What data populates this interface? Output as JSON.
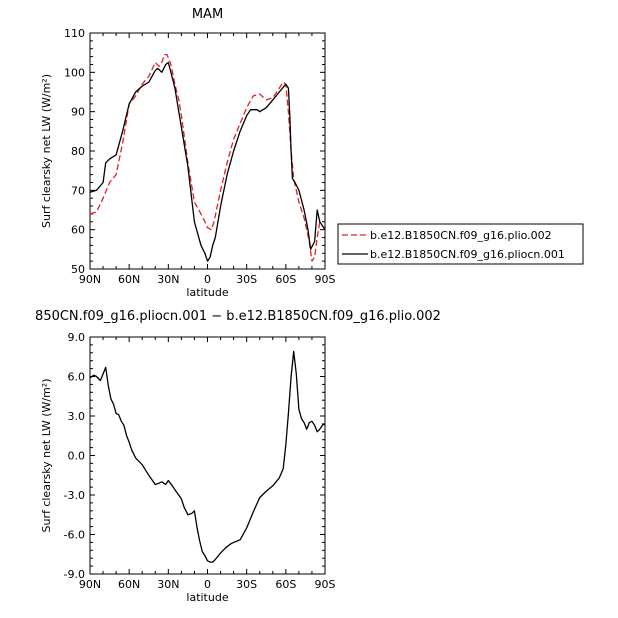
{
  "chart_data": [
    {
      "type": "line",
      "title": "MAM",
      "xlabel": "latitude",
      "ylabel": "Surf clearsky net LW (W/m²)",
      "xlim": [
        90,
        -90
      ],
      "ylim": [
        50,
        110
      ],
      "xticks": [
        "90N",
        "60N",
        "30N",
        "0",
        "30S",
        "60S",
        "90S"
      ],
      "yticks": [
        "50",
        "60",
        "70",
        "80",
        "90",
        "100",
        "110"
      ],
      "legend": "right",
      "series": [
        {
          "name": "b.e12.B1850CN.f09_g16.plio.002",
          "color": "#dd2222",
          "style": "dashed",
          "x": [
            90,
            85,
            80,
            75,
            70,
            65,
            60,
            55,
            50,
            45,
            40,
            37,
            35,
            33,
            31,
            28,
            25,
            22,
            20,
            15,
            10,
            5,
            2,
            0,
            -3,
            -5,
            -10,
            -15,
            -20,
            -25,
            -30,
            -35,
            -40,
            -45,
            -50,
            -55,
            -58,
            -60,
            -62,
            -64,
            -66,
            -68,
            -70,
            -74,
            -78,
            -80,
            -82,
            -84,
            -86,
            -88,
            -90
          ],
          "y": [
            64,
            64.5,
            68,
            72,
            74,
            82,
            92,
            94,
            97,
            99,
            102.5,
            101.5,
            102.5,
            104.5,
            104.5,
            102,
            97,
            93,
            89,
            77,
            67,
            64,
            62,
            60.5,
            60,
            62,
            70,
            77,
            83,
            87,
            91,
            94,
            94.5,
            93,
            93.5,
            96,
            97.5,
            97,
            90,
            80,
            73,
            70,
            67,
            63,
            57,
            52,
            53,
            58,
            62,
            61,
            60
          ]
        },
        {
          "name": "b.e12.B1850CN.f09_g16.pliocn.001",
          "color": "#000000",
          "style": "solid",
          "x": [
            90,
            85,
            80,
            78,
            75,
            70,
            65,
            60,
            55,
            50,
            45,
            40,
            38,
            35,
            32,
            30,
            28,
            25,
            20,
            15,
            10,
            5,
            2,
            0,
            -2,
            -4,
            -6,
            -10,
            -15,
            -20,
            -25,
            -30,
            -33,
            -35,
            -38,
            -40,
            -45,
            -50,
            -55,
            -60,
            -62,
            -63,
            -64,
            -65,
            -67,
            -70,
            -74,
            -77,
            -79,
            -82,
            -84,
            -86,
            -88,
            -90
          ],
          "y": [
            69.5,
            70,
            72,
            77,
            78,
            79,
            85,
            92,
            95,
            96.5,
            97.5,
            100.5,
            101,
            100,
            102,
            102.5,
            100,
            96,
            86,
            76,
            62,
            56,
            54,
            52,
            53,
            56,
            58,
            66,
            74,
            80,
            85,
            89,
            90.5,
            90.5,
            90.5,
            90,
            91,
            93,
            95,
            97,
            96,
            89,
            80,
            73,
            72,
            70,
            65,
            60,
            55,
            57,
            65,
            62,
            61,
            60
          ]
        }
      ]
    },
    {
      "type": "line",
      "title": "850CN.f09_g16.pliocn.001 − b.e12.B1850CN.f09_g16.plio.002",
      "xlabel": "latitude",
      "ylabel": "Surf clearsky net LW (W/m²)",
      "xlim": [
        90,
        -90
      ],
      "ylim": [
        -9,
        9
      ],
      "xticks": [
        "90N",
        "60N",
        "30N",
        "0",
        "30S",
        "60S",
        "90S"
      ],
      "yticks": [
        "9.0",
        "6.0",
        "3.0",
        "0.0",
        "-3.0",
        "-6.0",
        "-9.0"
      ],
      "series": [
        {
          "color": "#000000",
          "style": "solid",
          "x": [
            90,
            87,
            85,
            82,
            80,
            78,
            76,
            74,
            72,
            70,
            68,
            66,
            64,
            62,
            60,
            58,
            55,
            52,
            50,
            45,
            40,
            37,
            35,
            32,
            30,
            27,
            25,
            20,
            18,
            15,
            12,
            10,
            8,
            6,
            4,
            2,
            0,
            -2,
            -4,
            -6,
            -10,
            -14,
            -18,
            -20,
            -25,
            -30,
            -35,
            -40,
            -45,
            -50,
            -55,
            -58,
            -60,
            -62,
            -64,
            -66,
            -68,
            -70,
            -72,
            -74,
            -76,
            -78,
            -80,
            -82,
            -84,
            -86,
            -88,
            -90
          ],
          "y": [
            5.9,
            6.1,
            6,
            5.7,
            6.2,
            6.7,
            5.3,
            4.3,
            3.9,
            3.2,
            3.1,
            2.6,
            2.3,
            1.5,
            1,
            0.4,
            -0.2,
            -0.5,
            -0.7,
            -1.5,
            -2.2,
            -2.1,
            -2.0,
            -2.2,
            -1.9,
            -2.3,
            -2.6,
            -3.3,
            -3.9,
            -4.5,
            -4.4,
            -4.2,
            -5.5,
            -6.5,
            -7.3,
            -7.6,
            -8.0,
            -8.1,
            -8.1,
            -7.9,
            -7.4,
            -7.0,
            -6.7,
            -6.6,
            -6.4,
            -5.5,
            -4.3,
            -3.2,
            -2.7,
            -2.3,
            -1.7,
            -1.0,
            0.8,
            3.2,
            6.0,
            7.9,
            6.2,
            3.5,
            2.8,
            2.5,
            2.0,
            2.5,
            2.6,
            2.3,
            1.8,
            2.0,
            2.3,
            2.4
          ]
        }
      ]
    }
  ]
}
